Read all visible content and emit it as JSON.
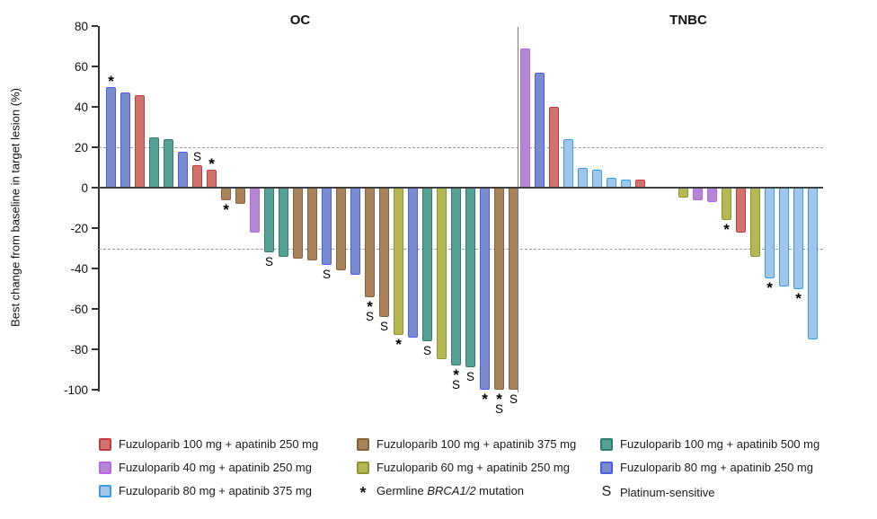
{
  "chart_data": {
    "type": "bar",
    "subtype": "waterfall",
    "ylabel": "Best change from baseline in target lesion (%)",
    "ylim": [
      -100,
      80
    ],
    "yticks": [
      80,
      60,
      40,
      20,
      0,
      -20,
      -40,
      -60,
      -80,
      -100
    ],
    "reference_lines": [
      20,
      -30
    ],
    "grid": "dashed horizontal reference lines only",
    "legend_position": "bottom",
    "series": {
      "red": {
        "label": "Fuzuloparib 100 mg + apatinib 250 mg",
        "fill": "#d0736c",
        "stroke": "#c23b42"
      },
      "purple": {
        "label": "Fuzuloparib 40 mg + apatinib 250 mg",
        "fill": "#b188d1",
        "stroke": "#bb63ea"
      },
      "lightblue": {
        "label": "Fuzuloparib 80 mg + apatinib 375 mg",
        "fill": "#a2c5e9",
        "stroke": "#359ceb"
      },
      "brown": {
        "label": "Fuzuloparib 100 mg + apatinib 375 mg",
        "fill": "#a8825a",
        "stroke": "#84623a"
      },
      "olive": {
        "label": "Fuzuloparib 60 mg + apatinib 250 mg",
        "fill": "#b5b754",
        "stroke": "#90942f"
      },
      "teal": {
        "label": "Fuzuloparib 100 mg + apatinib 500 mg",
        "fill": "#56a096",
        "stroke": "#2d7e71"
      },
      "periwinkle": {
        "label": "Fuzuloparib 80 mg + apatinib 250 mg",
        "fill": "#7b8bd0",
        "stroke": "#4c5de0"
      }
    },
    "marker_meanings": {
      "*": "Germline BRCA1/2 mutation",
      "S": "Platinum-sensitive"
    },
    "panels": [
      {
        "title": "OC",
        "bars": [
          {
            "value": 50,
            "series": "periwinkle",
            "marker": "*"
          },
          {
            "value": 47,
            "series": "periwinkle",
            "marker": ""
          },
          {
            "value": 46,
            "series": "red",
            "marker": ""
          },
          {
            "value": 25,
            "series": "teal",
            "marker": ""
          },
          {
            "value": 24,
            "series": "teal",
            "marker": ""
          },
          {
            "value": 18,
            "series": "periwinkle",
            "marker": ""
          },
          {
            "value": 11,
            "series": "red",
            "marker": "S"
          },
          {
            "value": 9,
            "series": "red",
            "marker": "*"
          },
          {
            "value": -6,
            "series": "brown",
            "marker": "*"
          },
          {
            "value": -8,
            "series": "brown",
            "marker": ""
          },
          {
            "value": -22,
            "series": "purple",
            "marker": ""
          },
          {
            "value": -32,
            "series": "teal",
            "marker": "S"
          },
          {
            "value": -34,
            "series": "teal",
            "marker": ""
          },
          {
            "value": -35,
            "series": "brown",
            "marker": ""
          },
          {
            "value": -36,
            "series": "brown",
            "marker": ""
          },
          {
            "value": -38,
            "series": "periwinkle",
            "marker": "S"
          },
          {
            "value": -41,
            "series": "brown",
            "marker": ""
          },
          {
            "value": -43,
            "series": "periwinkle",
            "marker": ""
          },
          {
            "value": -54,
            "series": "brown",
            "marker": "*S"
          },
          {
            "value": -64,
            "series": "brown",
            "marker": "S"
          },
          {
            "value": -73,
            "series": "olive",
            "marker": "*"
          },
          {
            "value": -74,
            "series": "periwinkle",
            "marker": ""
          },
          {
            "value": -76,
            "series": "teal",
            "marker": "S"
          },
          {
            "value": -85,
            "series": "olive",
            "marker": ""
          },
          {
            "value": -88,
            "series": "teal",
            "marker": "*S"
          },
          {
            "value": -89,
            "series": "teal",
            "marker": "S"
          },
          {
            "value": -100,
            "series": "periwinkle",
            "marker": "*"
          },
          {
            "value": -100,
            "series": "brown",
            "marker": "*S"
          },
          {
            "value": -100,
            "series": "brown",
            "marker": "S"
          }
        ]
      },
      {
        "title": "TNBC",
        "bars": [
          {
            "value": 69,
            "series": "purple",
            "marker": ""
          },
          {
            "value": 57,
            "series": "periwinkle",
            "marker": ""
          },
          {
            "value": 40,
            "series": "red",
            "marker": ""
          },
          {
            "value": 24,
            "series": "lightblue",
            "marker": ""
          },
          {
            "value": 10,
            "series": "lightblue",
            "marker": ""
          },
          {
            "value": 9,
            "series": "lightblue",
            "marker": ""
          },
          {
            "value": 5,
            "series": "lightblue",
            "marker": ""
          },
          {
            "value": 4,
            "series": "lightblue",
            "marker": ""
          },
          {
            "value": 4,
            "series": "red",
            "marker": ""
          },
          {
            "value": 0,
            "series": null,
            "marker": ""
          },
          {
            "value": 0,
            "series": null,
            "marker": ""
          },
          {
            "value": -5,
            "series": "olive",
            "marker": ""
          },
          {
            "value": -6,
            "series": "purple",
            "marker": ""
          },
          {
            "value": -7,
            "series": "purple",
            "marker": ""
          },
          {
            "value": -16,
            "series": "olive",
            "marker": "*"
          },
          {
            "value": -22,
            "series": "red",
            "marker": ""
          },
          {
            "value": -34,
            "series": "olive",
            "marker": ""
          },
          {
            "value": -45,
            "series": "lightblue",
            "marker": "*"
          },
          {
            "value": -49,
            "series": "lightblue",
            "marker": ""
          },
          {
            "value": -50,
            "series": "lightblue",
            "marker": "*"
          },
          {
            "value": -75,
            "series": "lightblue",
            "marker": ""
          }
        ]
      }
    ]
  },
  "legend": {
    "columns": [
      [
        {
          "type": "swatch",
          "series": "red"
        },
        {
          "type": "swatch",
          "series": "purple"
        },
        {
          "type": "swatch",
          "series": "lightblue"
        }
      ],
      [
        {
          "type": "swatch",
          "series": "brown"
        },
        {
          "type": "swatch",
          "series": "olive"
        },
        {
          "type": "marker",
          "symbol": "*",
          "label_pre": "Germline ",
          "label_italic": "BRCA1/2",
          "label_post": " mutation"
        }
      ],
      [
        {
          "type": "swatch",
          "series": "teal"
        },
        {
          "type": "swatch",
          "series": "periwinkle"
        },
        {
          "type": "marker",
          "symbol": "S",
          "label_pre": "Platinum-sensitive",
          "label_italic": "",
          "label_post": ""
        }
      ]
    ]
  }
}
